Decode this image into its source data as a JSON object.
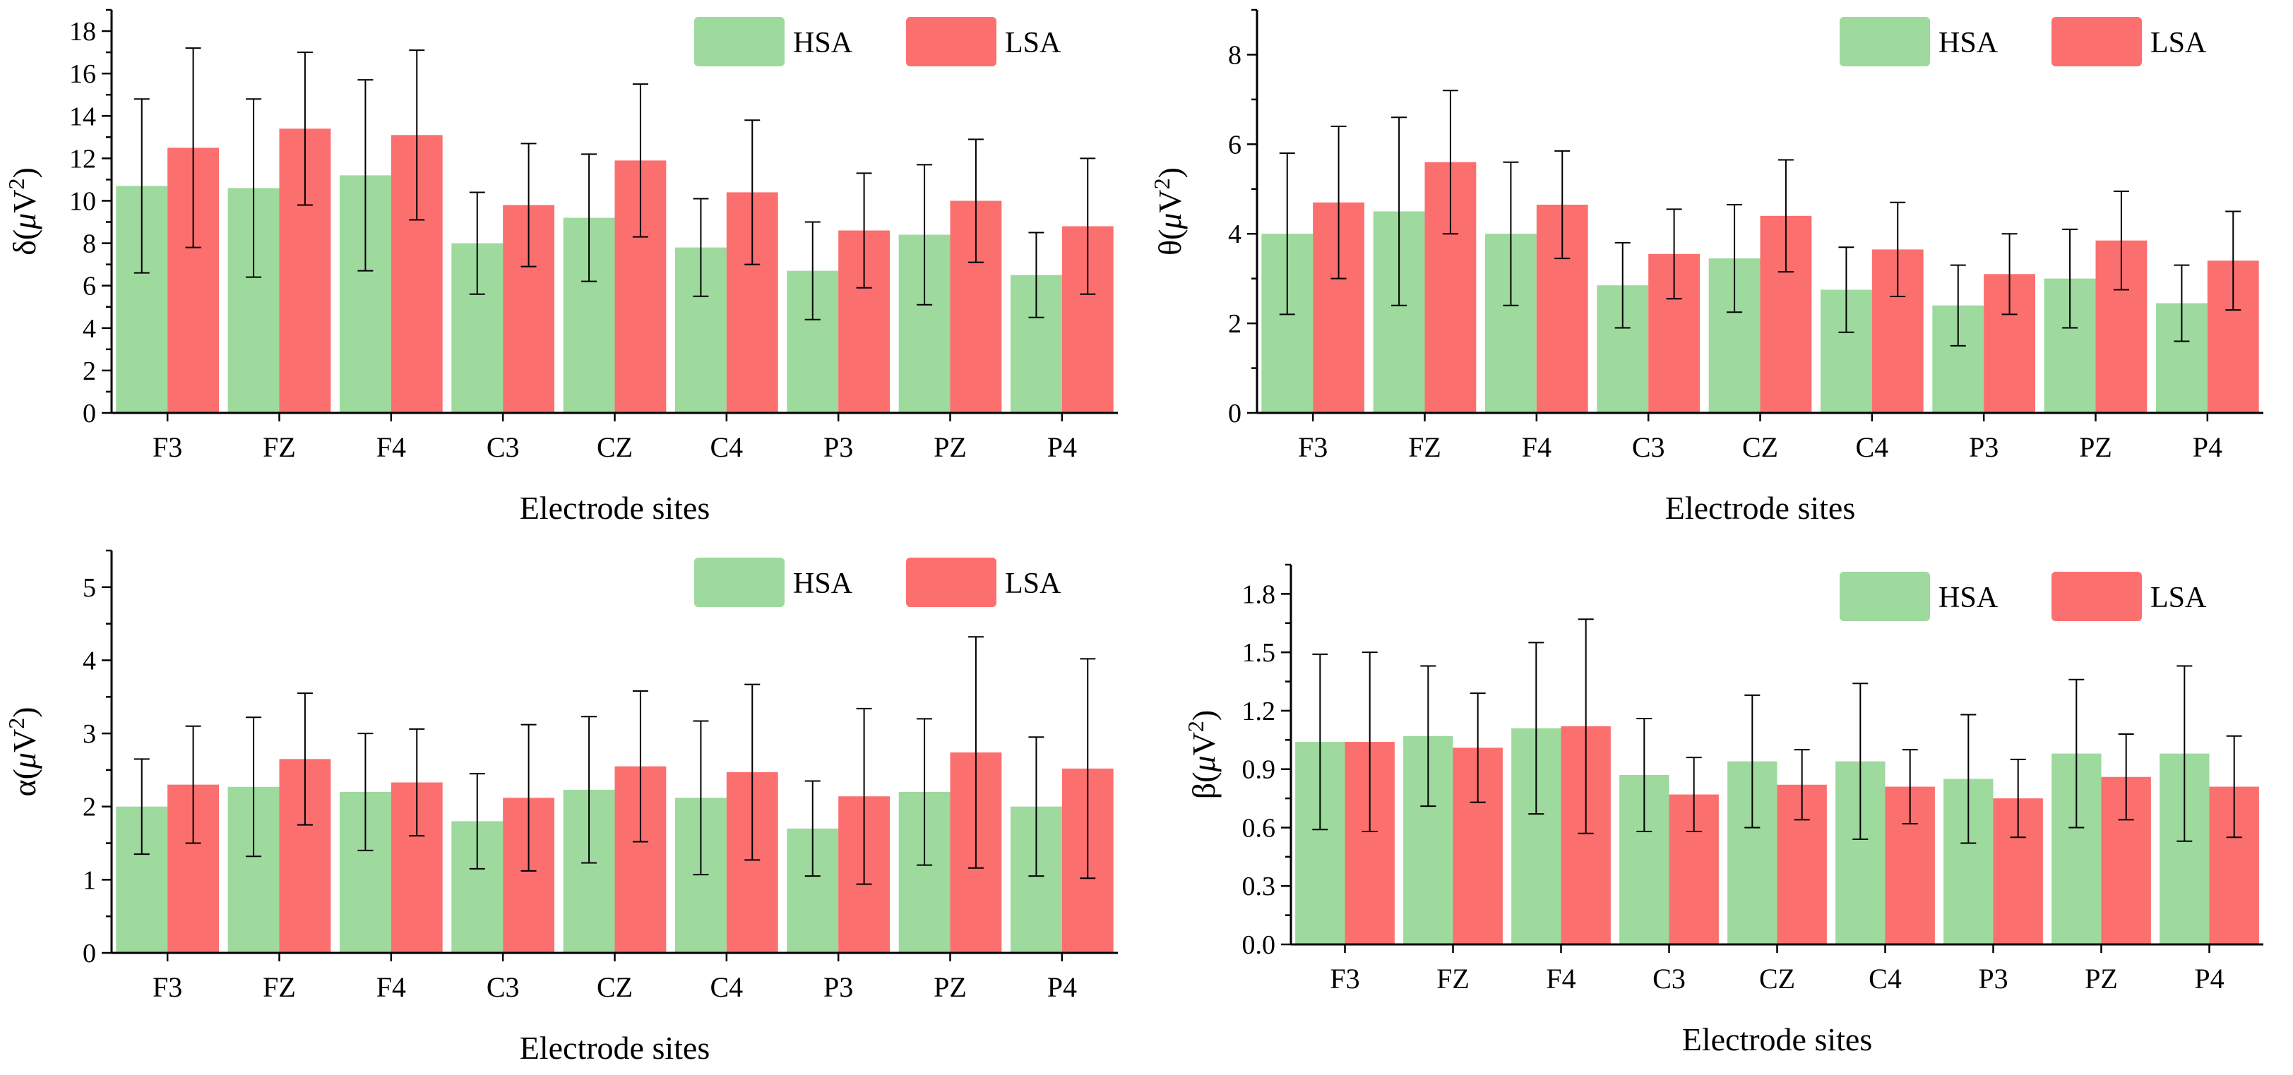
{
  "colors": {
    "HSA": "#9ED99E",
    "LSA": "#FB6F6F"
  },
  "chart_data": [
    {
      "id": "delta",
      "type": "bar",
      "ylabel": "δ(μV²)",
      "ylabel_symbol": "δ",
      "ylabel_unit_mu": "μ",
      "ylabel_unit_v": "V",
      "ylabel_unit_exp": "2",
      "xlabel": "Electrode sites",
      "ylim": [
        0,
        19
      ],
      "yticks": [
        0,
        2,
        4,
        6,
        8,
        10,
        12,
        14,
        16,
        18
      ],
      "ytick_labels": [
        "0",
        "2",
        "4",
        "6",
        "8",
        "10",
        "12",
        "14",
        "16",
        "18"
      ],
      "categories": [
        "F3",
        "FZ",
        "F4",
        "C3",
        "CZ",
        "C4",
        "P3",
        "PZ",
        "P4"
      ],
      "series": [
        {
          "name": "HSA",
          "values": [
            10.7,
            10.6,
            11.2,
            8.0,
            9.2,
            7.8,
            6.7,
            8.4,
            6.5
          ],
          "errors": [
            4.1,
            4.2,
            4.5,
            2.4,
            3.0,
            2.3,
            2.3,
            3.3,
            2.0
          ]
        },
        {
          "name": "LSA",
          "values": [
            12.5,
            13.4,
            13.1,
            9.8,
            11.9,
            10.4,
            8.6,
            10.0,
            8.8
          ],
          "errors": [
            4.7,
            3.6,
            4.0,
            2.9,
            3.6,
            3.4,
            2.7,
            2.9,
            3.2
          ]
        }
      ]
    },
    {
      "id": "theta",
      "type": "bar",
      "ylabel": "θ(μV²)",
      "ylabel_symbol": "θ",
      "ylabel_unit_mu": "μ",
      "ylabel_unit_v": "V",
      "ylabel_unit_exp": "2",
      "xlabel": "Electrode sites",
      "ylim": [
        0,
        9
      ],
      "yticks": [
        0,
        2,
        4,
        6,
        8
      ],
      "ytick_labels": [
        "0",
        "2",
        "4",
        "6",
        "8"
      ],
      "categories": [
        "F3",
        "FZ",
        "F4",
        "C3",
        "CZ",
        "C4",
        "P3",
        "PZ",
        "P4"
      ],
      "series": [
        {
          "name": "HSA",
          "values": [
            4.0,
            4.5,
            4.0,
            2.85,
            3.45,
            2.75,
            2.4,
            3.0,
            2.45
          ],
          "errors": [
            1.8,
            2.1,
            1.6,
            0.95,
            1.2,
            0.95,
            0.9,
            1.1,
            0.85
          ]
        },
        {
          "name": "LSA",
          "values": [
            4.7,
            5.6,
            4.65,
            3.55,
            4.4,
            3.65,
            3.1,
            3.85,
            3.4
          ],
          "errors": [
            1.7,
            1.6,
            1.2,
            1.0,
            1.25,
            1.05,
            0.9,
            1.1,
            1.1
          ]
        }
      ]
    },
    {
      "id": "alpha",
      "type": "bar",
      "ylabel": "α(μV²)",
      "ylabel_symbol": "α",
      "ylabel_unit_mu": "μ",
      "ylabel_unit_v": "V",
      "ylabel_unit_exp": "2",
      "xlabel": "Electrode sites",
      "ylim": [
        0,
        5.5
      ],
      "yticks": [
        0,
        1,
        2,
        3,
        4,
        5
      ],
      "ytick_labels": [
        "0",
        "1",
        "2",
        "3",
        "4",
        "5"
      ],
      "categories": [
        "F3",
        "FZ",
        "F4",
        "C3",
        "CZ",
        "C4",
        "P3",
        "PZ",
        "P4"
      ],
      "series": [
        {
          "name": "HSA",
          "values": [
            2.0,
            2.27,
            2.2,
            1.8,
            2.23,
            2.12,
            1.7,
            2.2,
            2.0
          ],
          "errors": [
            0.65,
            0.95,
            0.8,
            0.65,
            1.0,
            1.05,
            0.65,
            1.0,
            0.95
          ]
        },
        {
          "name": "LSA",
          "values": [
            2.3,
            2.65,
            2.33,
            2.12,
            2.55,
            2.47,
            2.14,
            2.74,
            2.52
          ],
          "errors": [
            0.8,
            0.9,
            0.73,
            1.0,
            1.03,
            1.2,
            1.2,
            1.58,
            1.5
          ]
        }
      ]
    },
    {
      "id": "beta",
      "type": "bar",
      "ylabel": "β(μV²)",
      "ylabel_symbol": "β",
      "ylabel_unit_mu": "μ",
      "ylabel_unit_v": "V",
      "ylabel_unit_exp": "2",
      "xlabel": "Electrode sites",
      "ylim": [
        0,
        1.95
      ],
      "yticks": [
        0,
        0.3,
        0.6,
        0.9,
        1.2,
        1.5,
        1.8
      ],
      "ytick_labels": [
        "0.0",
        "0.3",
        "0.6",
        "0.9",
        "1.2",
        "1.5",
        "1.8"
      ],
      "categories": [
        "F3",
        "FZ",
        "F4",
        "C3",
        "CZ",
        "C4",
        "P3",
        "PZ",
        "P4"
      ],
      "series": [
        {
          "name": "HSA",
          "values": [
            1.04,
            1.07,
            1.11,
            0.87,
            0.94,
            0.94,
            0.85,
            0.98,
            0.98
          ],
          "errors": [
            0.45,
            0.36,
            0.44,
            0.29,
            0.34,
            0.4,
            0.33,
            0.38,
            0.45
          ]
        },
        {
          "name": "LSA",
          "values": [
            1.04,
            1.01,
            1.12,
            0.77,
            0.82,
            0.81,
            0.75,
            0.86,
            0.81
          ],
          "errors": [
            0.46,
            0.28,
            0.55,
            0.19,
            0.18,
            0.19,
            0.2,
            0.22,
            0.26
          ]
        }
      ]
    }
  ]
}
